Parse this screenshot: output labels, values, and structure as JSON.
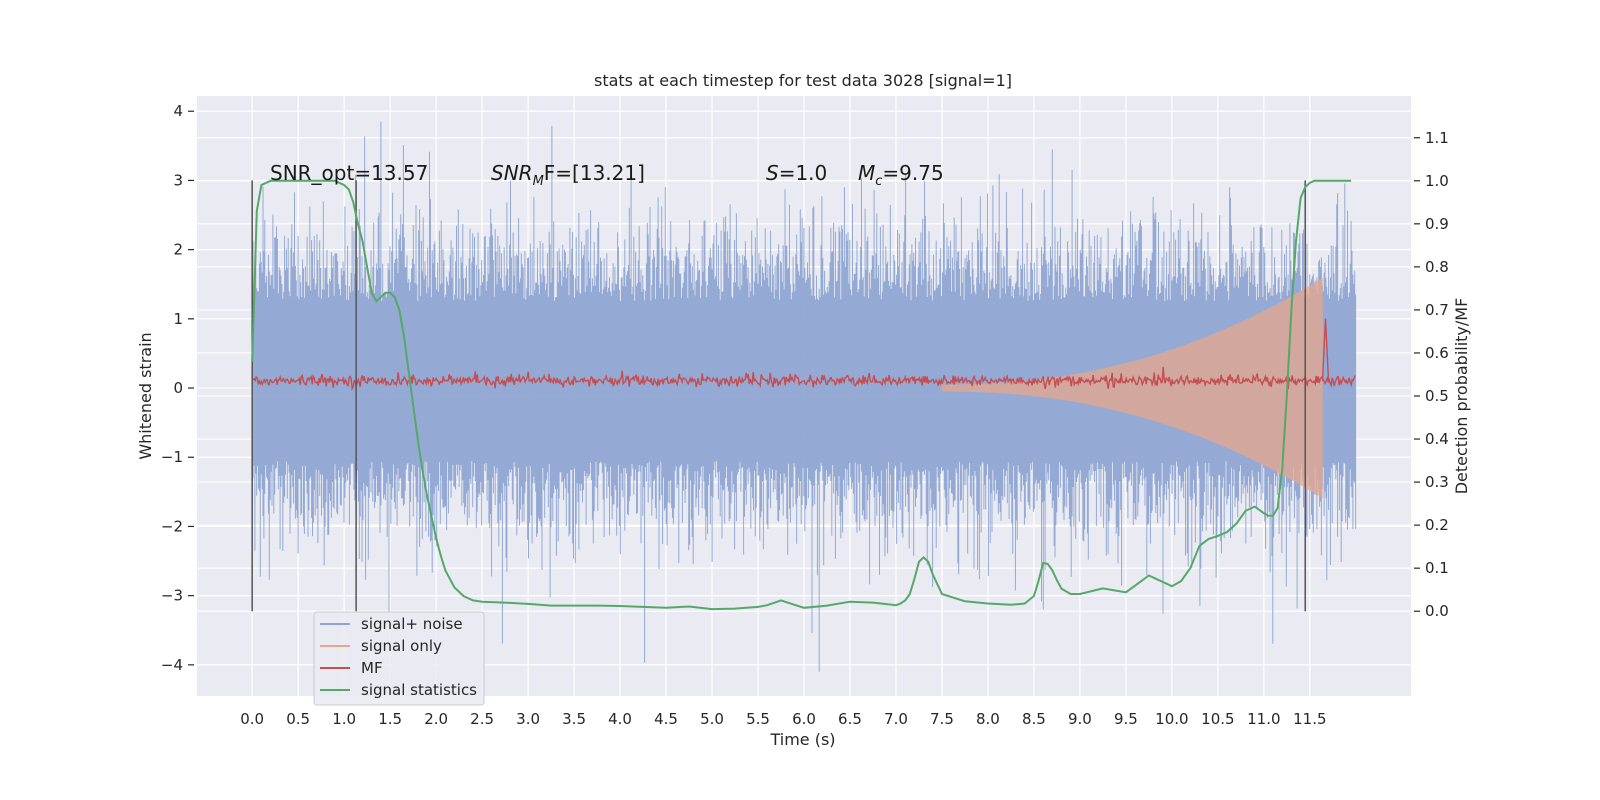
{
  "chart_data": {
    "type": "line",
    "title": "stats at each timestep for test data 3028 [signal=1]",
    "xlabel": "Time (s)",
    "ylabel_left": "Whitened strain",
    "ylabel_right": "Detection probability/MF",
    "xlim": [
      -0.6,
      12.6
    ],
    "ylim_left": [
      -4.45,
      4.22
    ],
    "ylim_right": [
      -0.197,
      1.197
    ],
    "x_ticks": [
      "0.0",
      "0.5",
      "1.0",
      "1.5",
      "2.0",
      "2.5",
      "3.0",
      "3.5",
      "4.0",
      "4.5",
      "5.0",
      "5.5",
      "6.0",
      "6.5",
      "7.0",
      "7.5",
      "8.0",
      "8.5",
      "9.0",
      "9.5",
      "10.0",
      "10.5",
      "11.0",
      "11.5"
    ],
    "y_left_ticks": [
      "4",
      "3",
      "2",
      "1",
      "0",
      "−1",
      "−2",
      "−3",
      "−4"
    ],
    "y_right_ticks": [
      "1.1",
      "1.0",
      "0.9",
      "0.8",
      "0.7",
      "0.6",
      "0.5",
      "0.4",
      "0.3",
      "0.2",
      "0.1",
      "0.0"
    ],
    "grid": true,
    "legend_position": "lower-left",
    "annotations": {
      "snr_opt": "SNR_opt=13.57",
      "snr_mf_prefix": "SNR",
      "snr_mf_sub": "M",
      "snr_mf_suffix": "F=[13.21]",
      "s_prefix": "S",
      "s_suffix": "=1.0",
      "mc_prefix": "M",
      "mc_sub": "c",
      "mc_suffix": "=9.75"
    },
    "vertical_markers_x": [
      0.0,
      1.13,
      11.45
    ],
    "series": [
      {
        "name": "signal+ noise",
        "color": "#8fa6d2",
        "kind": "noise",
        "axis": "left",
        "x_range": [
          0.0,
          12.0
        ],
        "typical_extent": [
          -2.0,
          2.2
        ],
        "min_max": [
          -4.1,
          3.85
        ]
      },
      {
        "name": "signal only",
        "color": "#e6a68c",
        "kind": "chirp",
        "axis": "left",
        "x_range": [
          7.5,
          11.65
        ],
        "amplitude_start": 0.05,
        "amplitude_peak": 1.6
      },
      {
        "name": "MF",
        "color": "#c44e52",
        "kind": "band",
        "axis": "right",
        "baseline": 0.535,
        "peak": {
          "x": 11.67,
          "y": 0.68
        }
      },
      {
        "name": "signal statistics",
        "color": "#55a868",
        "kind": "line",
        "axis": "right",
        "x": [
          0.0,
          0.05,
          0.1,
          0.15,
          0.2,
          0.3,
          0.4,
          0.5,
          0.6,
          0.7,
          0.8,
          0.9,
          1.0,
          1.05,
          1.1,
          1.15,
          1.2,
          1.25,
          1.3,
          1.35,
          1.4,
          1.45,
          1.5,
          1.55,
          1.6,
          1.65,
          1.7,
          1.75,
          1.8,
          1.85,
          1.9,
          1.95,
          2.0,
          2.05,
          2.1,
          2.2,
          2.3,
          2.4,
          2.5,
          2.75,
          3.0,
          3.25,
          3.5,
          3.75,
          4.0,
          4.25,
          4.5,
          4.75,
          5.0,
          5.25,
          5.5,
          5.6,
          5.75,
          6.0,
          6.25,
          6.5,
          6.75,
          7.0,
          7.05,
          7.1,
          7.15,
          7.2,
          7.25,
          7.3,
          7.35,
          7.4,
          7.5,
          7.75,
          8.0,
          8.25,
          8.4,
          8.5,
          8.55,
          8.6,
          8.65,
          8.7,
          8.75,
          8.8,
          8.9,
          9.0,
          9.25,
          9.5,
          9.75,
          9.85,
          9.9,
          10.0,
          10.1,
          10.2,
          10.3,
          10.4,
          10.5,
          10.6,
          10.7,
          10.8,
          10.9,
          11.0,
          11.05,
          11.1,
          11.15,
          11.2,
          11.25,
          11.3,
          11.35,
          11.4,
          11.45,
          11.5,
          11.55,
          11.6,
          11.65,
          11.7,
          11.8,
          11.9,
          11.95
        ],
        "y": [
          0.58,
          0.93,
          0.99,
          0.995,
          1.0,
          1.0,
          1.0,
          1.0,
          1.0,
          1.0,
          1.0,
          1.0,
          0.99,
          0.98,
          0.95,
          0.9,
          0.86,
          0.8,
          0.74,
          0.72,
          0.73,
          0.74,
          0.74,
          0.73,
          0.7,
          0.64,
          0.56,
          0.48,
          0.4,
          0.33,
          0.27,
          0.22,
          0.17,
          0.13,
          0.095,
          0.055,
          0.035,
          0.025,
          0.022,
          0.02,
          0.017,
          0.013,
          0.013,
          0.013,
          0.012,
          0.01,
          0.008,
          0.011,
          0.005,
          0.006,
          0.01,
          0.014,
          0.025,
          0.008,
          0.013,
          0.022,
          0.02,
          0.014,
          0.018,
          0.025,
          0.04,
          0.075,
          0.115,
          0.125,
          0.115,
          0.085,
          0.04,
          0.023,
          0.018,
          0.015,
          0.018,
          0.035,
          0.07,
          0.112,
          0.11,
          0.095,
          0.072,
          0.052,
          0.04,
          0.04,
          0.053,
          0.044,
          0.083,
          0.073,
          0.068,
          0.058,
          0.07,
          0.1,
          0.152,
          0.168,
          0.175,
          0.184,
          0.203,
          0.233,
          0.243,
          0.228,
          0.222,
          0.222,
          0.24,
          0.33,
          0.5,
          0.7,
          0.86,
          0.96,
          0.985,
          0.995,
          1.0,
          1.0,
          1.0,
          1.0,
          1.0,
          1.0,
          1.0
        ]
      }
    ]
  }
}
